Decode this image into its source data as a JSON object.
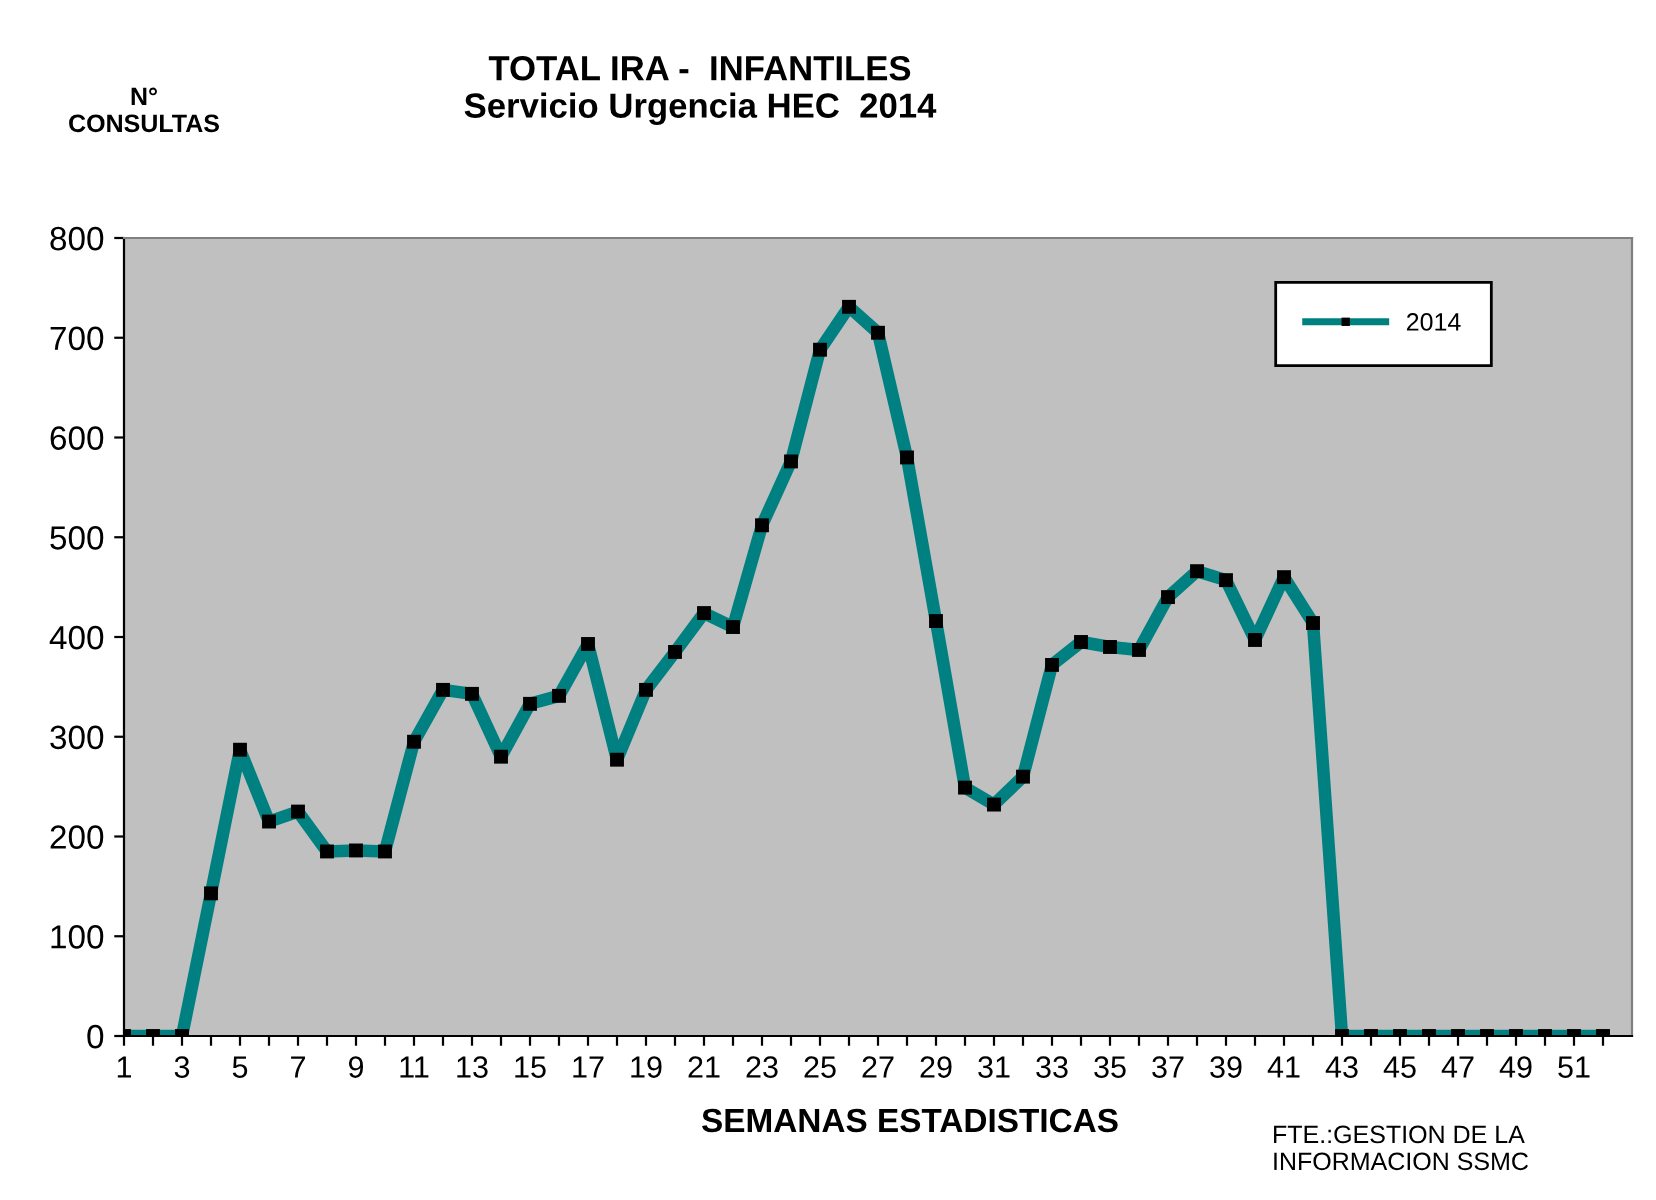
{
  "chart_data": {
    "type": "line",
    "title": "TOTAL IRA -  INFANTILES\nServicio Urgencia HEC  2014",
    "ylabel": "N°\nCONSULTAS",
    "xlabel": "SEMANAS ESTADISTICAS",
    "annotations": [
      "FTE.:GESTION DE LA\nINFORMACION SSMC"
    ],
    "categories": [
      "1",
      null,
      "3",
      null,
      "5",
      null,
      "7",
      null,
      "9",
      null,
      "11",
      null,
      "13",
      null,
      "15",
      null,
      "17",
      null,
      "19",
      null,
      "21",
      null,
      "23",
      null,
      "25",
      null,
      "27",
      null,
      "29",
      null,
      "31",
      null,
      "33",
      null,
      "35",
      null,
      "37",
      null,
      "39",
      null,
      "41",
      null,
      "43",
      null,
      "45",
      null,
      "47",
      null,
      "49",
      null,
      "51",
      null
    ],
    "series": [
      {
        "name": "2014",
        "color": "#008080",
        "values": [
          0,
          0,
          0,
          143,
          287,
          215,
          225,
          185,
          186,
          185,
          295,
          347,
          343,
          280,
          333,
          341,
          393,
          277,
          347,
          385,
          424,
          410,
          512,
          576,
          688,
          731,
          705,
          580,
          416,
          249,
          232,
          260,
          372,
          395,
          390,
          387,
          440,
          466,
          457,
          397,
          460,
          414,
          0,
          0,
          0,
          0,
          0,
          0,
          0,
          0,
          0,
          0
        ]
      }
    ],
    "ylim": [
      0,
      800
    ],
    "yticks": [
      0,
      100,
      200,
      300,
      400,
      500,
      600,
      700,
      800
    ],
    "grid": false,
    "legend": "top right",
    "marker": "square",
    "line_style": "solid"
  }
}
